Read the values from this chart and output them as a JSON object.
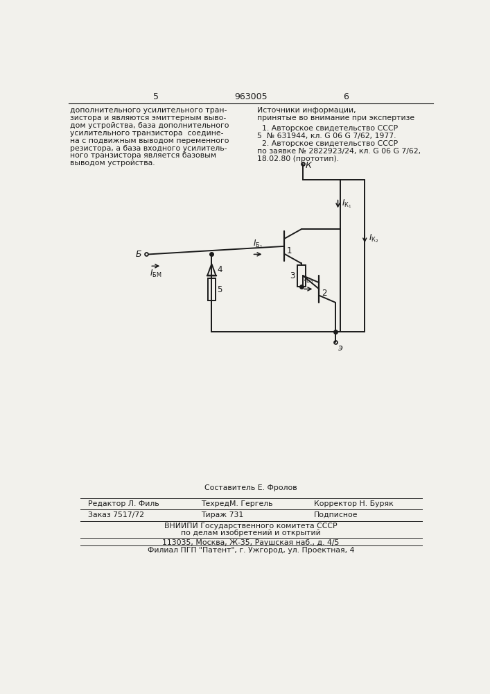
{
  "page_color": "#f2f1ec",
  "text_color": "#1a1a1a",
  "header_num_left": "5",
  "header_patent": "963005",
  "header_num_right": "6",
  "col_left_text": [
    "дополнительного усилительного тран-",
    "зистора и являются эмиттерным выво-",
    "дом устройства, база дополнительного",
    "усилительного транзистора  соедине-",
    "на с подвижным выводом переменного",
    "резистора, а база входного усилитель-",
    "ного транзистора является базовым",
    "выводом устройства."
  ],
  "col_right_header": "Источники информации,",
  "col_right_subheader": "принятые во внимание при экспертизе",
  "col_right_text": [
    "  1. Авторское свидетельство СССР",
    "5  № 631944, кл. G 06 G 7/62, 1977.",
    "  2. Авторское свидетельство СССР",
    "по заявке № 2822923/24, кл. G 06 G 7/62,",
    "18.02.80 (прототип)."
  ],
  "footer_composer": "Составитель Е. Фролов",
  "footer_editor": "Редактор Л. Филь",
  "footer_tech": "ТехредМ. Гергель",
  "footer_corrector": "Корректор Н. Буряк",
  "footer_order": "Заказ 7517/72",
  "footer_print": "Тираж 731",
  "footer_sign": "Подписное",
  "footer_org1": "ВНИИПИ Государственного комитета СССР",
  "footer_org2": "по делам изобретений и открытий",
  "footer_addr": "113035, Москва, Ж-35, Раушская наб., д. 4/5",
  "footer_branch": "Филиал ПГП \"Патент\", г. Ужгород, ул. Проектная, 4"
}
